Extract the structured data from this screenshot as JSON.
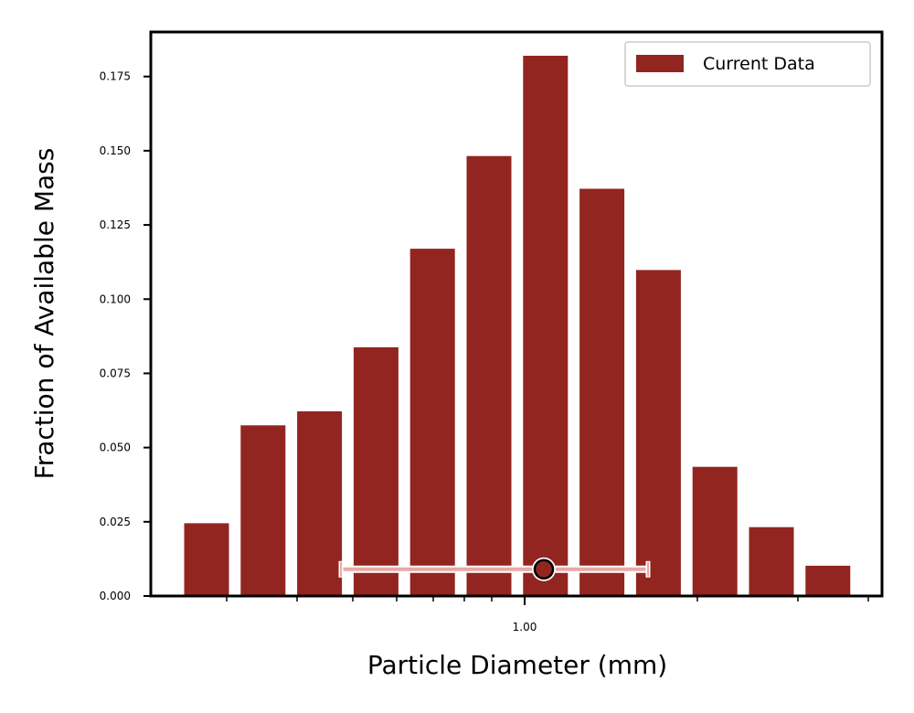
{
  "chart_data": {
    "type": "bar",
    "xlabel": "Particle Diameter (mm)",
    "ylabel": "Fraction of Available Mass",
    "x_scale": "log",
    "x_tick_labels": [
      "1.00"
    ],
    "ylim": [
      0,
      0.19
    ],
    "y_ticks": [
      0.0,
      0.025,
      0.05,
      0.075,
      0.1,
      0.125,
      0.15,
      0.175
    ],
    "y_tick_labels": [
      "0.000",
      "0.025",
      "0.050",
      "0.075",
      "0.100",
      "0.125",
      "0.150",
      "0.175"
    ],
    "grid": false,
    "legend": {
      "position": "top-right",
      "entries": [
        "Current Data"
      ]
    },
    "series": [
      {
        "name": "Current Data",
        "color": "#922520",
        "values": [
          0.0245,
          0.0575,
          0.0622,
          0.0838,
          0.117,
          0.1482,
          0.182,
          0.1372,
          0.1098,
          0.0435,
          0.0232,
          0.0102
        ]
      }
    ],
    "annotation": {
      "type": "point-with-horizontal-errorbar",
      "y": 0.009,
      "marker_color": "#922520",
      "bar_color": "#e8a8a5"
    }
  }
}
